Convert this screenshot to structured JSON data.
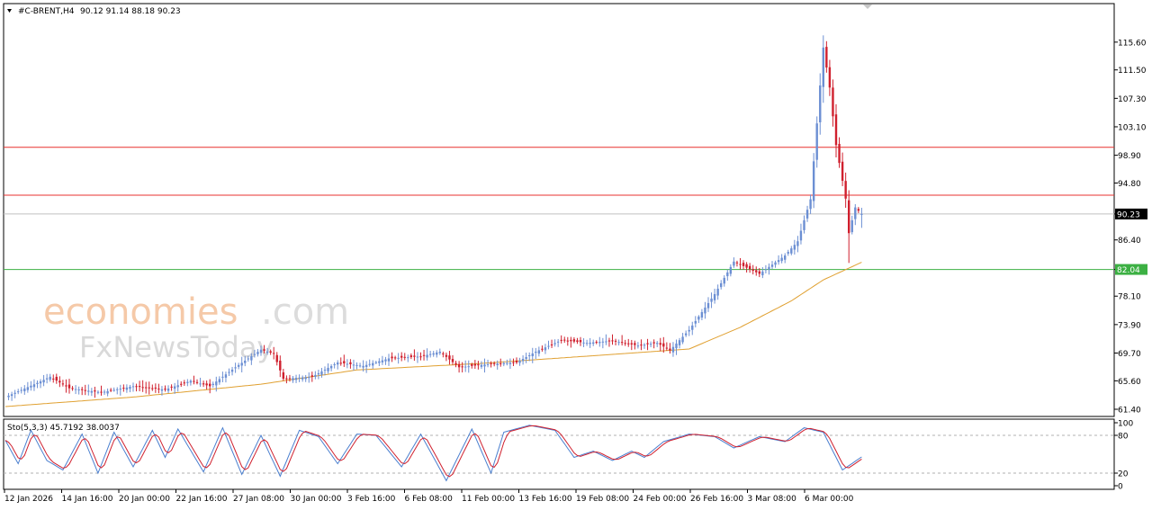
{
  "header": {
    "symbol": "#C-BRENT,H4",
    "ohlc": "90.12 91.14 88.18 90.23"
  },
  "watermark": {
    "brand_part1": "economies",
    "brand_part2": ".com",
    "brand_line2": "FxNewsToday"
  },
  "chart_data": [
    {
      "type": "candlestick",
      "title": "",
      "ylim": [
        61.4,
        118.5
      ],
      "y_ticks": [
        "115.60",
        "111.50",
        "107.30",
        "103.10",
        "98.90",
        "94.80",
        "90.23",
        "86.40",
        "82.04",
        "78.10",
        "73.90",
        "69.70",
        "65.60",
        "61.40"
      ],
      "x_ticks": [
        "12 Jan 2026",
        "14 Jan 16:00",
        "20 Jan 00:00",
        "22 Jan 16:00",
        "27 Jan 08:00",
        "30 Jan 00:00",
        "3 Feb 16:00",
        "6 Feb 08:00",
        "11 Feb 00:00",
        "13 Feb 16:00",
        "19 Feb 08:00",
        "24 Feb 00:00",
        "26 Feb 16:00",
        "3 Mar 08:00",
        "6 Mar 00:00"
      ],
      "current_price": {
        "value": 90.23,
        "label": "90.23"
      },
      "horizontal_lines": [
        {
          "value": 100.08,
          "label": "100.08",
          "color": "#e8312f"
        },
        {
          "value": 93.01,
          "label": "93.01",
          "color": "#e8312f"
        },
        {
          "value": 82.04,
          "label": "82.04",
          "color": "#3cb043"
        }
      ],
      "colors": {
        "bull": "#6c8fd3",
        "bear": "#d0202e",
        "ma": "#e0a030"
      },
      "anchors": [
        {
          "i": 0,
          "c": 63.2
        },
        {
          "i": 10,
          "c": 65.3
        },
        {
          "i": 14,
          "c": 66.2
        },
        {
          "i": 20,
          "c": 64.5
        },
        {
          "i": 30,
          "c": 63.9
        },
        {
          "i": 40,
          "c": 64.8
        },
        {
          "i": 50,
          "c": 64.3
        },
        {
          "i": 58,
          "c": 65.6
        },
        {
          "i": 64,
          "c": 64.8
        },
        {
          "i": 72,
          "c": 67.6
        },
        {
          "i": 80,
          "c": 70.2
        },
        {
          "i": 84,
          "c": 69.6
        },
        {
          "i": 87,
          "c": 65.9
        },
        {
          "i": 96,
          "c": 66.2
        },
        {
          "i": 104,
          "c": 68.3
        },
        {
          "i": 112,
          "c": 67.8
        },
        {
          "i": 120,
          "c": 68.9
        },
        {
          "i": 130,
          "c": 69.2
        },
        {
          "i": 136,
          "c": 69.9
        },
        {
          "i": 142,
          "c": 67.6
        },
        {
          "i": 152,
          "c": 68.1
        },
        {
          "i": 160,
          "c": 68.3
        },
        {
          "i": 166,
          "c": 69.9
        },
        {
          "i": 174,
          "c": 71.6
        },
        {
          "i": 182,
          "c": 71.2
        },
        {
          "i": 190,
          "c": 71.5
        },
        {
          "i": 198,
          "c": 70.8
        },
        {
          "i": 204,
          "c": 71.2
        },
        {
          "i": 208,
          "c": 70.1
        },
        {
          "i": 214,
          "c": 73.1
        },
        {
          "i": 222,
          "c": 78.4
        },
        {
          "i": 228,
          "c": 83.2
        },
        {
          "i": 236,
          "c": 81.4
        },
        {
          "i": 244,
          "c": 84.1
        },
        {
          "i": 248,
          "c": 86.2
        },
        {
          "i": 252,
          "c": 92.4
        },
        {
          "i": 256,
          "c": 114.8
        },
        {
          "i": 258,
          "c": 108.9
        },
        {
          "i": 260,
          "c": 100.4
        },
        {
          "i": 263,
          "c": 92.5
        },
        {
          "i": 264,
          "c": 87.4
        },
        {
          "i": 266,
          "c": 91.2
        },
        {
          "i": 268,
          "c": 90.23
        }
      ],
      "ma_anchors": [
        {
          "i": 0,
          "c": 61.8
        },
        {
          "i": 40,
          "c": 63.2
        },
        {
          "i": 80,
          "c": 65.1
        },
        {
          "i": 110,
          "c": 67.2
        },
        {
          "i": 150,
          "c": 68.2
        },
        {
          "i": 190,
          "c": 69.5
        },
        {
          "i": 214,
          "c": 70.3
        },
        {
          "i": 230,
          "c": 73.5
        },
        {
          "i": 246,
          "c": 77.4
        },
        {
          "i": 256,
          "c": 80.5
        },
        {
          "i": 268,
          "c": 83.1
        }
      ]
    },
    {
      "type": "line",
      "title": "",
      "indicator_label": "Sto(5,3,3) 45.7192 38.0037",
      "ylim": [
        0,
        100
      ],
      "y_ticks": [
        "100",
        "80",
        "20",
        "0"
      ],
      "levels": [
        80,
        20
      ],
      "series": [
        {
          "name": "main",
          "color": "#4a7fcf"
        },
        {
          "name": "signal",
          "color": "#d0202e"
        }
      ],
      "anchors_main": [
        {
          "i": 0,
          "v": 72
        },
        {
          "i": 4,
          "v": 35
        },
        {
          "i": 8,
          "v": 88
        },
        {
          "i": 13,
          "v": 40
        },
        {
          "i": 18,
          "v": 25
        },
        {
          "i": 24,
          "v": 82
        },
        {
          "i": 29,
          "v": 20
        },
        {
          "i": 34,
          "v": 85
        },
        {
          "i": 40,
          "v": 30
        },
        {
          "i": 46,
          "v": 88
        },
        {
          "i": 50,
          "v": 45
        },
        {
          "i": 54,
          "v": 90
        },
        {
          "i": 62,
          "v": 22
        },
        {
          "i": 68,
          "v": 92
        },
        {
          "i": 74,
          "v": 18
        },
        {
          "i": 80,
          "v": 80
        },
        {
          "i": 86,
          "v": 15
        },
        {
          "i": 92,
          "v": 88
        },
        {
          "i": 98,
          "v": 78
        },
        {
          "i": 104,
          "v": 35
        },
        {
          "i": 110,
          "v": 82
        },
        {
          "i": 116,
          "v": 80
        },
        {
          "i": 124,
          "v": 30
        },
        {
          "i": 130,
          "v": 82
        },
        {
          "i": 138,
          "v": 8
        },
        {
          "i": 146,
          "v": 90
        },
        {
          "i": 152,
          "v": 20
        },
        {
          "i": 156,
          "v": 85
        },
        {
          "i": 164,
          "v": 96
        },
        {
          "i": 172,
          "v": 88
        },
        {
          "i": 178,
          "v": 45
        },
        {
          "i": 184,
          "v": 55
        },
        {
          "i": 190,
          "v": 40
        },
        {
          "i": 196,
          "v": 55
        },
        {
          "i": 200,
          "v": 45
        },
        {
          "i": 206,
          "v": 70
        },
        {
          "i": 214,
          "v": 82
        },
        {
          "i": 222,
          "v": 78
        },
        {
          "i": 228,
          "v": 60
        },
        {
          "i": 236,
          "v": 78
        },
        {
          "i": 244,
          "v": 70
        },
        {
          "i": 250,
          "v": 92
        },
        {
          "i": 256,
          "v": 85
        },
        {
          "i": 262,
          "v": 25
        },
        {
          "i": 268,
          "v": 45.7
        }
      ]
    }
  ]
}
